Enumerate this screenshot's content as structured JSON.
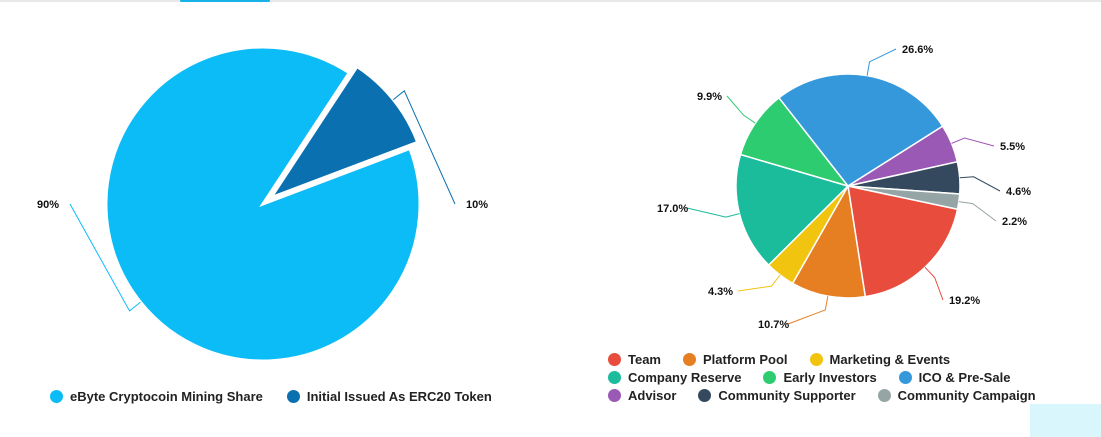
{
  "chart_data": [
    {
      "type": "pie",
      "title": "",
      "series": [
        {
          "name": "eByte Cryptocoin Mining Share",
          "value": 90,
          "label": "90%",
          "color": "#0bbcf7"
        },
        {
          "name": "Initial Issued As ERC20 Token",
          "value": 10,
          "label": "10%",
          "color": "#0a70b0"
        }
      ],
      "exploded": [
        "Initial Issued As ERC20 Token"
      ],
      "legend_position": "bottom"
    },
    {
      "type": "pie",
      "title": "",
      "series": [
        {
          "name": "Team",
          "value": 19.2,
          "label": "19.2%",
          "color": "#e74c3c"
        },
        {
          "name": "Platform Pool",
          "value": 10.7,
          "label": "10.7%",
          "color": "#e67e22"
        },
        {
          "name": "Marketing & Events",
          "value": 4.3,
          "label": "4.3%",
          "color": "#f1c40f"
        },
        {
          "name": "Company Reserve",
          "value": 17.0,
          "label": "17.0%",
          "color": "#1abc9c"
        },
        {
          "name": "Early Investors",
          "value": 9.9,
          "label": "9.9%",
          "color": "#2ecc71"
        },
        {
          "name": "ICO & Pre-Sale",
          "value": 26.6,
          "label": "26.6%",
          "color": "#3498db"
        },
        {
          "name": "Advisor",
          "value": 5.5,
          "label": "5.5%",
          "color": "#9b59b6"
        },
        {
          "name": "Community Supporter",
          "value": 4.6,
          "label": "4.6%",
          "color": "#34495e"
        },
        {
          "name": "Community Campaign",
          "value": 2.2,
          "label": "2.2%",
          "color": "#95a5a6"
        }
      ],
      "legend_position": "bottom"
    }
  ]
}
